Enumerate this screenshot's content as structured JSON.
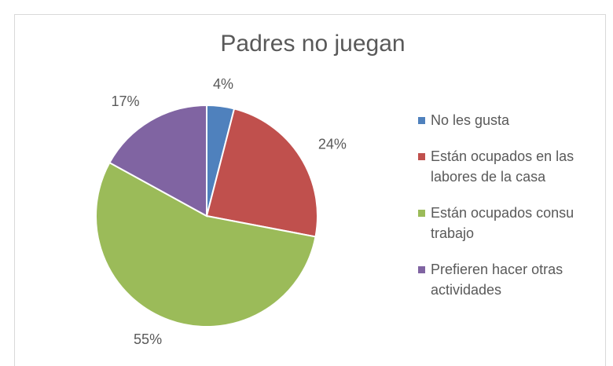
{
  "chart_data": {
    "type": "pie",
    "title": "Padres no juegan",
    "categories": [
      "No les gusta",
      "Están ocupados en las labores de la casa",
      "Están ocupados consu trabajo",
      "Prefieren hacer otras actividades"
    ],
    "values": [
      4,
      24,
      55,
      17
    ],
    "value_labels": [
      "4%",
      "24%",
      "55%",
      "17%"
    ],
    "colors": [
      "#4f81bd",
      "#c0504d",
      "#9bbb59",
      "#8064a2"
    ],
    "legend": "right"
  }
}
